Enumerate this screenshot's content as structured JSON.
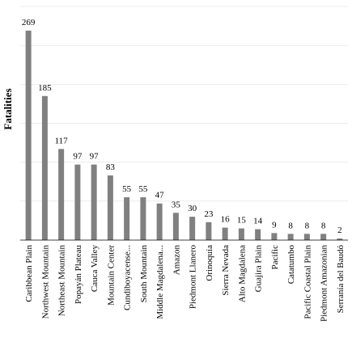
{
  "chart_data": {
    "type": "bar",
    "ylabel": "Fatalities",
    "xlabel": "",
    "title": "",
    "ylim": [
      0,
      300
    ],
    "grid": true,
    "categories": [
      "Caribbean Plain",
      "Northwest Mountain",
      "Northeast Mountain",
      "Popayán Plateau",
      "Cauca Valley",
      "Mountain Center",
      "Cundiboyacense...",
      "South Mountain",
      "Middle Magdalena...",
      "Amazon",
      "Piedmont Llanero",
      "Orinoquía",
      "Sierra Nevada",
      "Alto Magdalena",
      "Guajira Plain",
      "Pacific",
      "Catatumbo",
      "Pacific Coastal Plain",
      "Piedmont Amazonian",
      "Serranía del Baudó"
    ],
    "values": [
      269,
      185,
      117,
      97,
      97,
      83,
      55,
      55,
      47,
      35,
      30,
      23,
      16,
      15,
      14,
      9,
      8,
      8,
      8,
      2
    ],
    "bar_color": "#808080"
  }
}
